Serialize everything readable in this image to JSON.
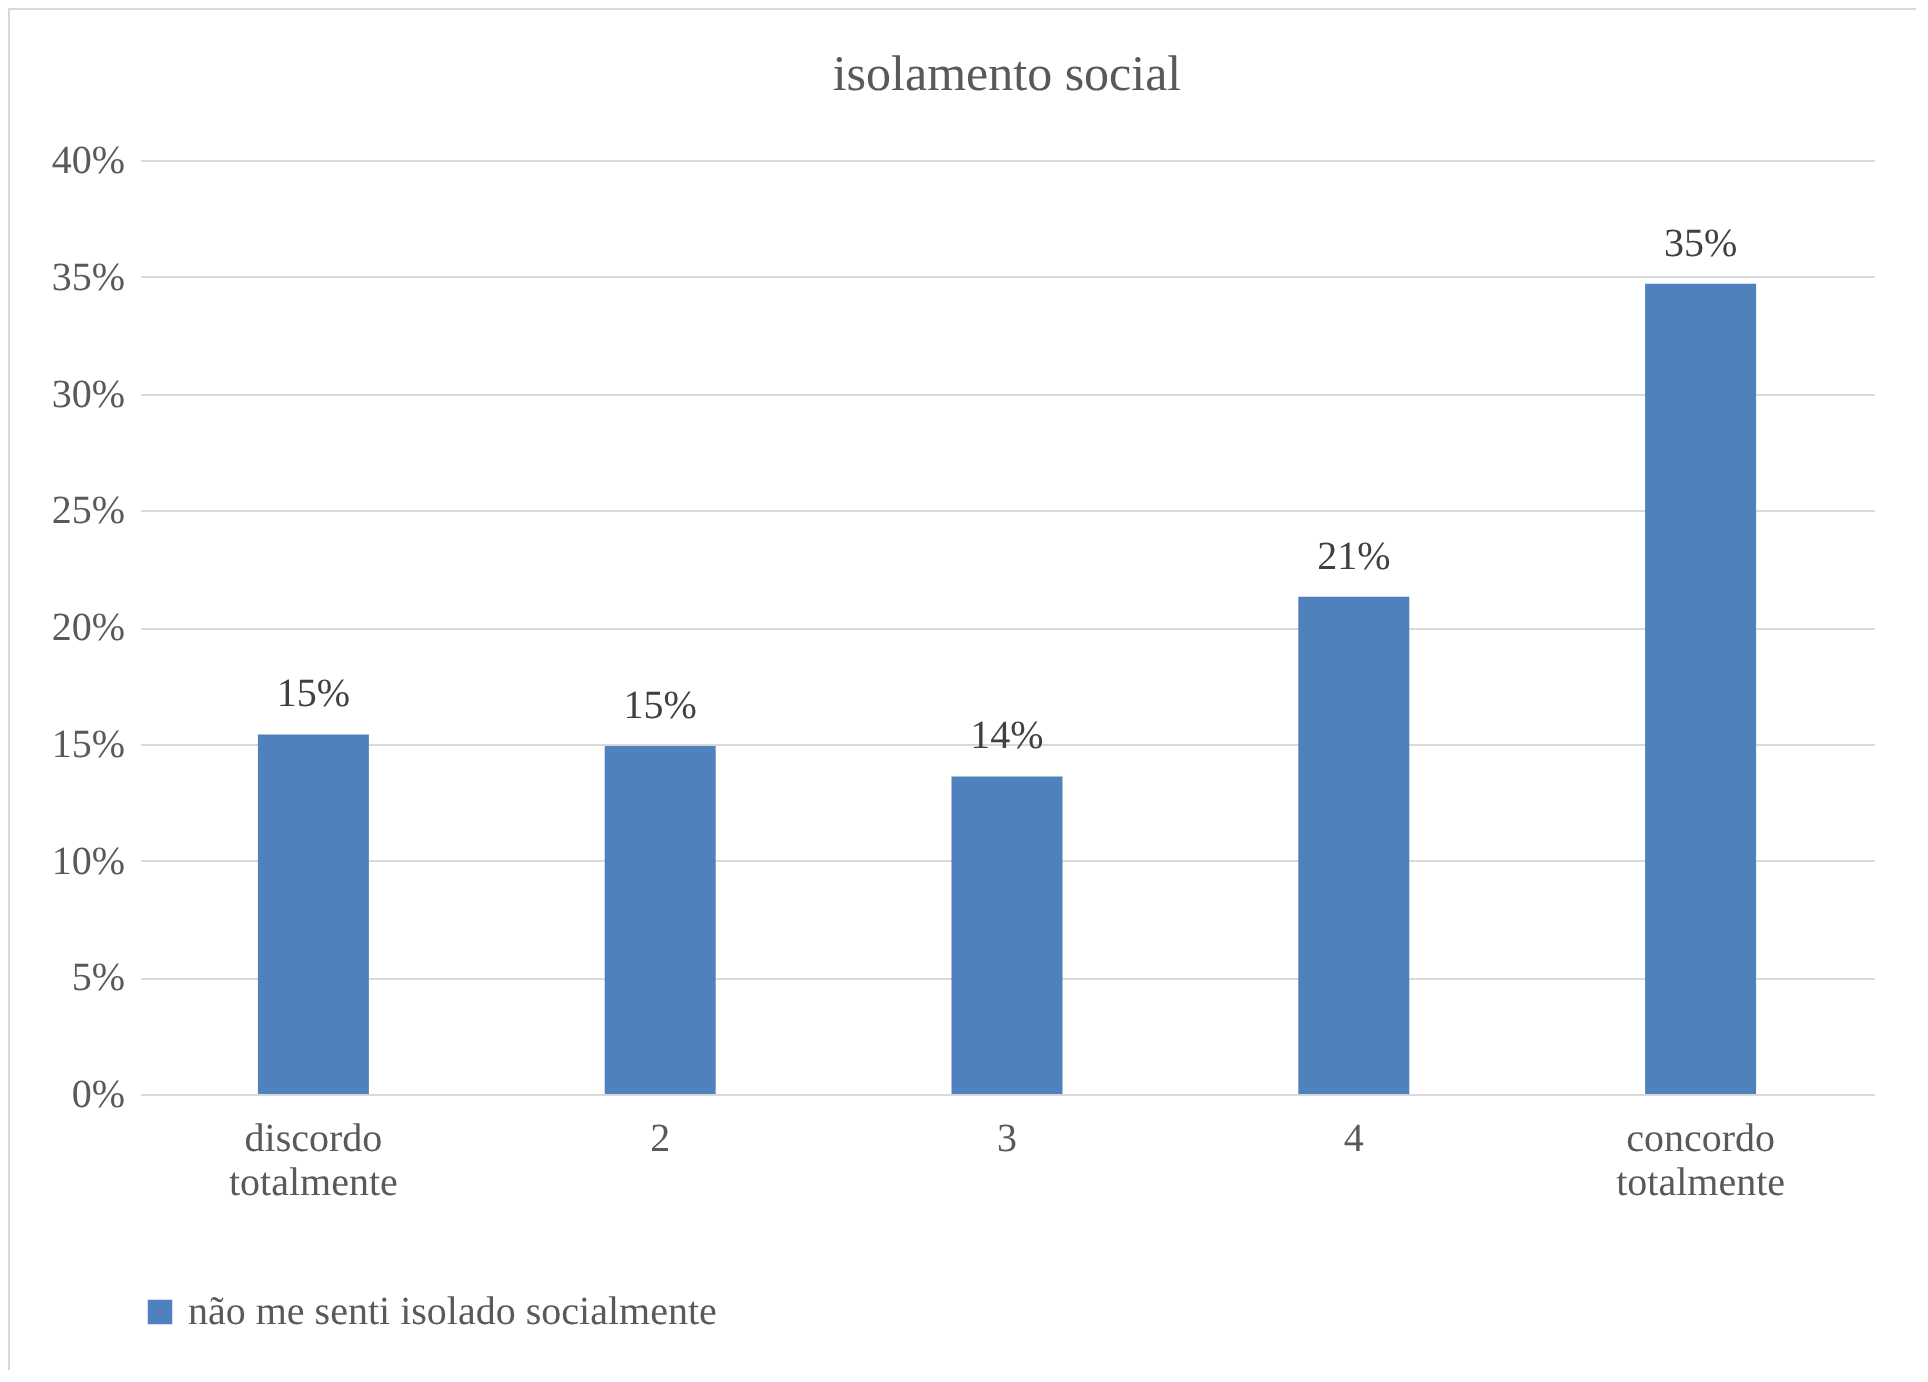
{
  "chart_data": {
    "type": "bar",
    "title": "isolamento social",
    "categories": [
      "discordo totalmente",
      "2",
      "3",
      "4",
      "concordo totalmente"
    ],
    "series": [
      {
        "name": "não me senti isolado socialmente",
        "color": "#4f81bd",
        "values": [
          15.4,
          14.9,
          13.6,
          21.3,
          34.7
        ],
        "value_labels": [
          "15%",
          "15%",
          "14%",
          "21%",
          "35%"
        ]
      }
    ],
    "ylim": [
      0,
      40
    ],
    "yticks": [
      {
        "value": 0,
        "label": "0%"
      },
      {
        "value": 5,
        "label": "5%"
      },
      {
        "value": 10,
        "label": "10%"
      },
      {
        "value": 15,
        "label": "15%"
      },
      {
        "value": 20,
        "label": "20%"
      },
      {
        "value": 25,
        "label": "25%"
      },
      {
        "value": 30,
        "label": "30%"
      },
      {
        "value": 35,
        "label": "35%"
      },
      {
        "value": 40,
        "label": "40%"
      }
    ],
    "grid": "y",
    "legend": "bottom"
  }
}
